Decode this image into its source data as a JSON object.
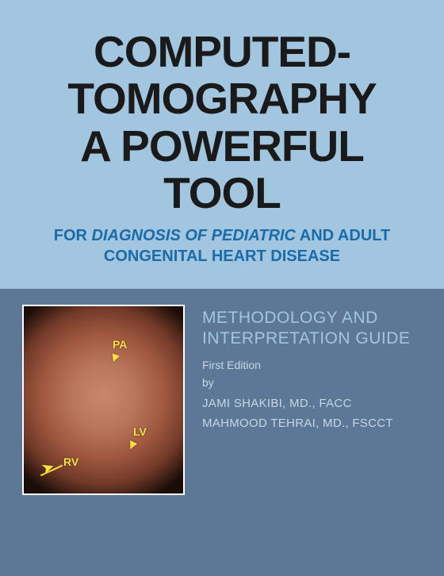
{
  "cover": {
    "top_bg": "#a2c6e0",
    "bottom_bg": "#5c7896",
    "title_color": "#1a1a1a",
    "subtitle_color": "#1a6ba8",
    "guide_color": "#a2c6e0",
    "meta_color": "#c8d6e4",
    "label_color": "#f8e040"
  },
  "title": {
    "line1": "COMPUTED-",
    "line2": "TOMOGRAPHY",
    "line3": "A POWERFUL",
    "line4": "TOOL",
    "fontsize": 55
  },
  "subtitle": {
    "pre": "FOR ",
    "emph": "DIAGNOSIS OF PEDIATRIC",
    "post": " AND ADULT CONGENITAL HEART DISEASE",
    "fontsize": 20
  },
  "guide": {
    "line1": "METHODOLOGY AND",
    "line2": "INTERPRETATION GUIDE",
    "fontsize": 21
  },
  "edition": "First Edition",
  "by": "by",
  "authors": [
    "JAMI SHAKIBI, MD., FACC",
    "MAHMOOD TEHRAI, MD., FSCCT"
  ],
  "scan_labels": {
    "pa": "PA",
    "lv": "LV",
    "rv": "RV"
  }
}
